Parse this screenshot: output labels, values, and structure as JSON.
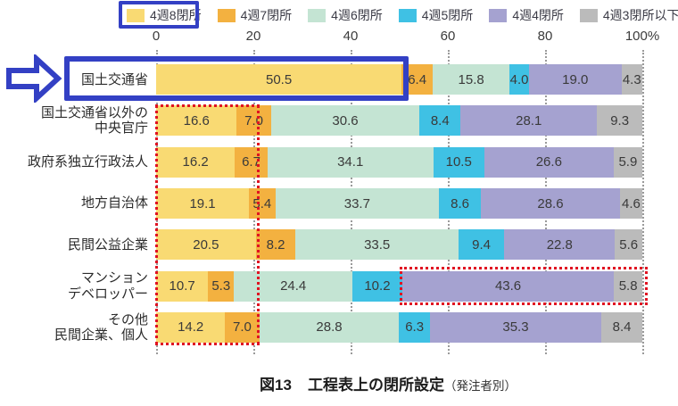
{
  "caption": {
    "fig_label": "図13",
    "title": "工程表上の閉所設定",
    "suffix": "（発注者別）"
  },
  "annotations": {
    "primary_highlight_color": "#3340c4",
    "secondary_highlight_color": "#e01322",
    "arrow_icon": "right-arrow-outline"
  },
  "chart_data": {
    "type": "bar",
    "orientation": "horizontal-stacked",
    "title": "図13　工程表上の閉所設定（発注者別）",
    "xlabel": "",
    "ylabel": "",
    "xlim": [
      0,
      100
    ],
    "axis_ticks": [
      "0",
      "20",
      "40",
      "60",
      "80",
      "100%"
    ],
    "grid": "dotted-vertical",
    "legend_position": "top",
    "unit": "%",
    "categories": [
      "国土交通省",
      "国土交通省以外の\n中央官庁",
      "政府系独立行政法人",
      "地方自治体",
      "民間公益企業",
      "マンション\nデベロッパー",
      "その他\n民間企業、個人"
    ],
    "series": [
      {
        "name": "4週8閉所",
        "color": "#f9da73",
        "values": [
          50.5,
          16.6,
          16.2,
          19.1,
          20.5,
          10.7,
          14.2
        ]
      },
      {
        "name": "4週7閉所",
        "color": "#f3b140",
        "values": [
          6.4,
          7.0,
          6.7,
          5.4,
          8.2,
          5.3,
          7.0
        ]
      },
      {
        "name": "4週6閉所",
        "color": "#c4e4d3",
        "values": [
          15.8,
          30.6,
          34.1,
          33.7,
          33.5,
          24.4,
          28.8
        ]
      },
      {
        "name": "4週5閉所",
        "color": "#3fc1e4",
        "values": [
          4.0,
          8.4,
          10.5,
          8.6,
          9.4,
          10.2,
          6.3
        ]
      },
      {
        "name": "4週4閉所",
        "color": "#a5a2d0",
        "values": [
          19.0,
          28.1,
          26.6,
          28.6,
          22.8,
          43.6,
          35.3
        ]
      },
      {
        "name": "4週3閉所以下",
        "color": "#bbbbbb",
        "values": [
          4.3,
          9.3,
          5.9,
          4.6,
          5.6,
          5.8,
          8.4
        ]
      }
    ]
  }
}
